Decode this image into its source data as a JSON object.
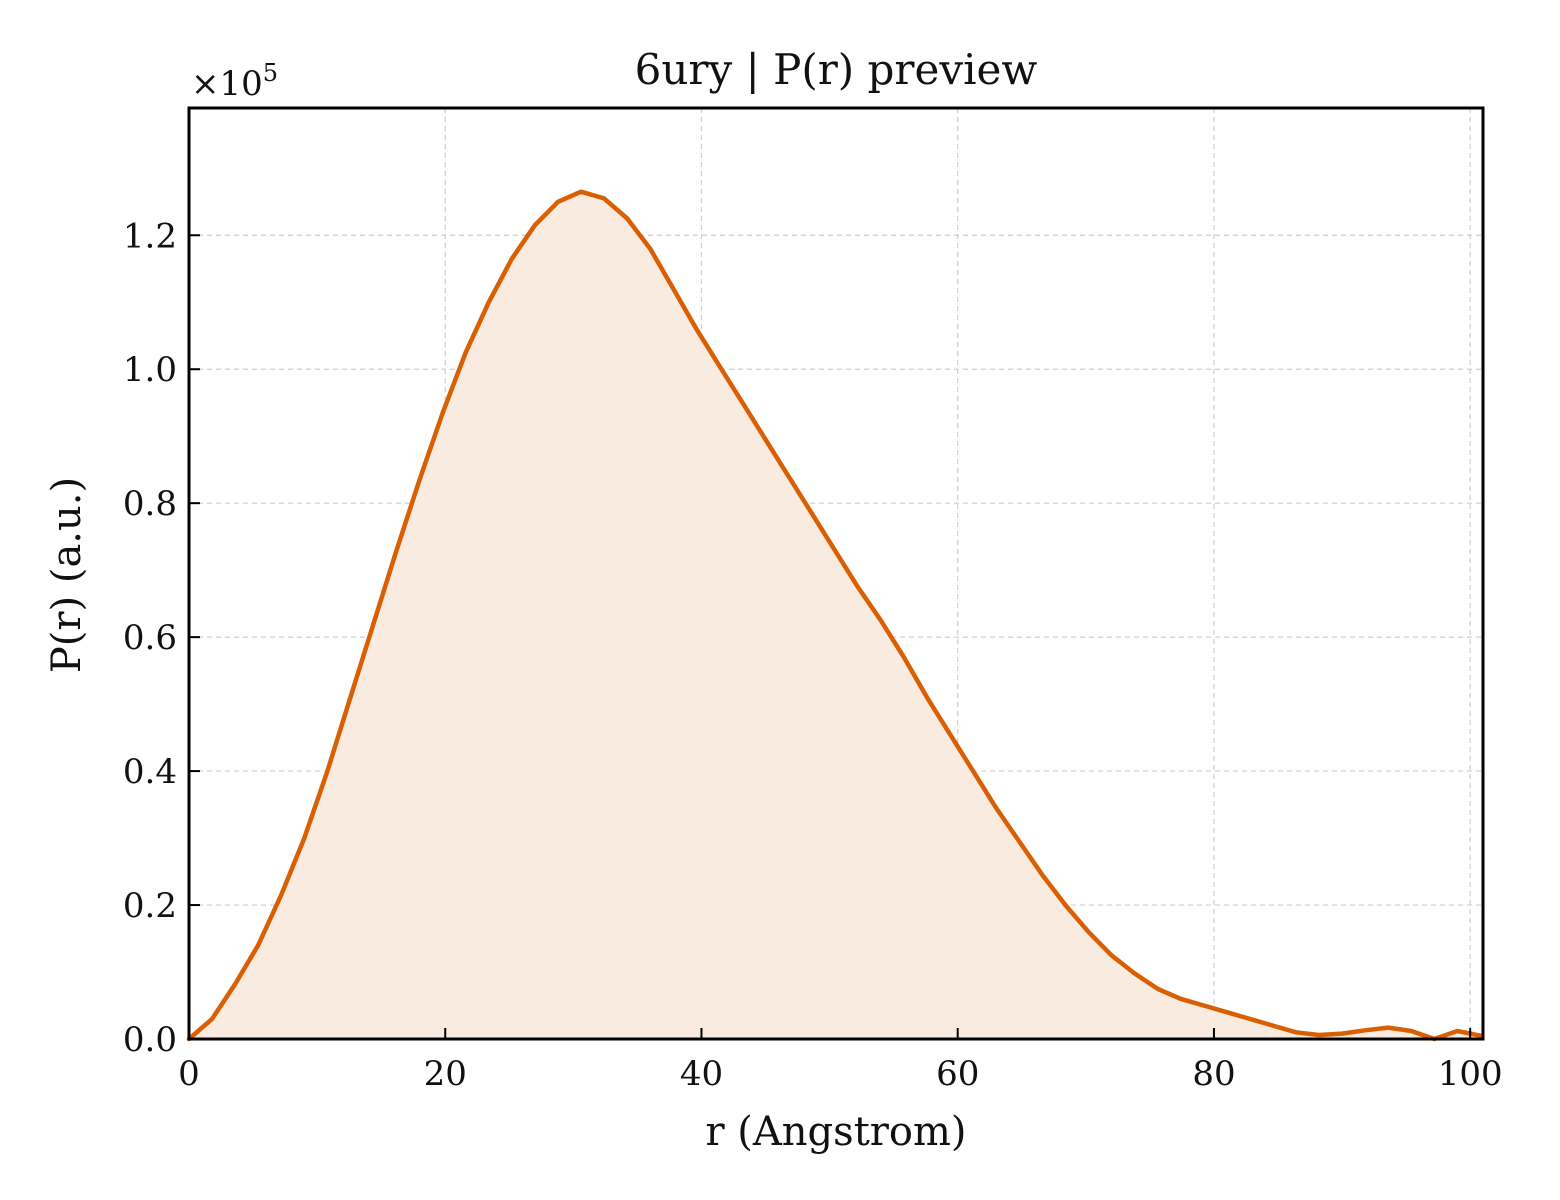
{
  "chart_data": {
    "type": "area",
    "title": "6ury | P(r) preview",
    "xlabel": "r (Angstrom)",
    "ylabel": "P(r) (a.u.)",
    "y_multiplier_prefix": "×10",
    "y_multiplier_exponent": "5",
    "xlim": [
      0,
      101
    ],
    "ylim": [
      0,
      1.39
    ],
    "x_ticks": [
      {
        "value": 0,
        "label": "0"
      },
      {
        "value": 20,
        "label": "20"
      },
      {
        "value": 40,
        "label": "40"
      },
      {
        "value": 60,
        "label": "60"
      },
      {
        "value": 80,
        "label": "80"
      },
      {
        "value": 100,
        "label": "100"
      }
    ],
    "y_ticks": [
      {
        "value": 0.0,
        "label": "0.0"
      },
      {
        "value": 0.2,
        "label": "0.2"
      },
      {
        "value": 0.4,
        "label": "0.4"
      },
      {
        "value": 0.6,
        "label": "0.6"
      },
      {
        "value": 0.8,
        "label": "0.8"
      },
      {
        "value": 1.0,
        "label": "1.0"
      },
      {
        "value": 1.2,
        "label": "1.2"
      }
    ],
    "grid": true,
    "series": [
      {
        "line_color": "#d95f02",
        "fill_color": "#f9ebe0",
        "x": [
          0,
          1.8,
          3.6,
          5.4,
          7.2,
          9.0,
          10.8,
          12.6,
          14.4,
          16.2,
          18.0,
          19.8,
          21.6,
          23.4,
          25.2,
          27.0,
          28.8,
          30.6,
          32.4,
          34.2,
          36.0,
          37.8,
          39.6,
          41.4,
          43.2,
          45.0,
          46.8,
          48.6,
          50.4,
          52.2,
          54.0,
          55.8,
          57.6,
          59.4,
          61.2,
          63.0,
          64.8,
          66.6,
          68.4,
          70.2,
          72.0,
          73.8,
          75.6,
          77.4,
          79.2,
          81.0,
          82.8,
          84.6,
          86.4,
          88.2,
          90.0,
          91.8,
          93.6,
          95.4,
          97.2,
          99.0,
          100.8
        ],
        "y": [
          0.0,
          0.03,
          0.082,
          0.14,
          0.215,
          0.3,
          0.4,
          0.51,
          0.62,
          0.73,
          0.835,
          0.935,
          1.025,
          1.1,
          1.165,
          1.215,
          1.25,
          1.265,
          1.255,
          1.225,
          1.18,
          1.12,
          1.06,
          1.005,
          0.95,
          0.895,
          0.84,
          0.785,
          0.73,
          0.675,
          0.625,
          0.57,
          0.51,
          0.455,
          0.4,
          0.345,
          0.295,
          0.245,
          0.2,
          0.16,
          0.125,
          0.098,
          0.075,
          0.06,
          0.05,
          0.04,
          0.03,
          0.02,
          0.01,
          0.006,
          0.008,
          0.013,
          0.017,
          0.012,
          0.0,
          0.012,
          0.005
        ]
      }
    ]
  }
}
